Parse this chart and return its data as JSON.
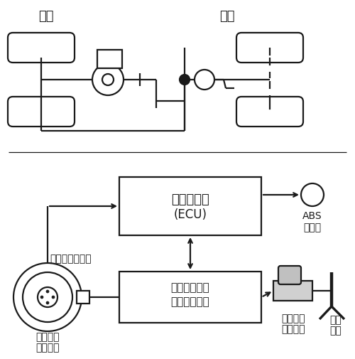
{
  "bg": "white",
  "lc": "#1a1a1a",
  "front_label": "前轮",
  "rear_label": "后轮",
  "ecu_line1": "电子控制器",
  "ecu_line2": "(ECU)",
  "act_line1": "执行器（制动",
  "act_line2": "压力调节器）",
  "abs_line1": "ABS",
  "abs_line2": "警示灯",
  "sensor_label": "车轮转速传感器",
  "sub_pump1": "制动分泵",
  "sub_pump2": "（轮缸）",
  "main_pump1": "制动总泵",
  "main_pump2": "（主缸）",
  "brake1": "制动",
  "brake2": "踏板"
}
